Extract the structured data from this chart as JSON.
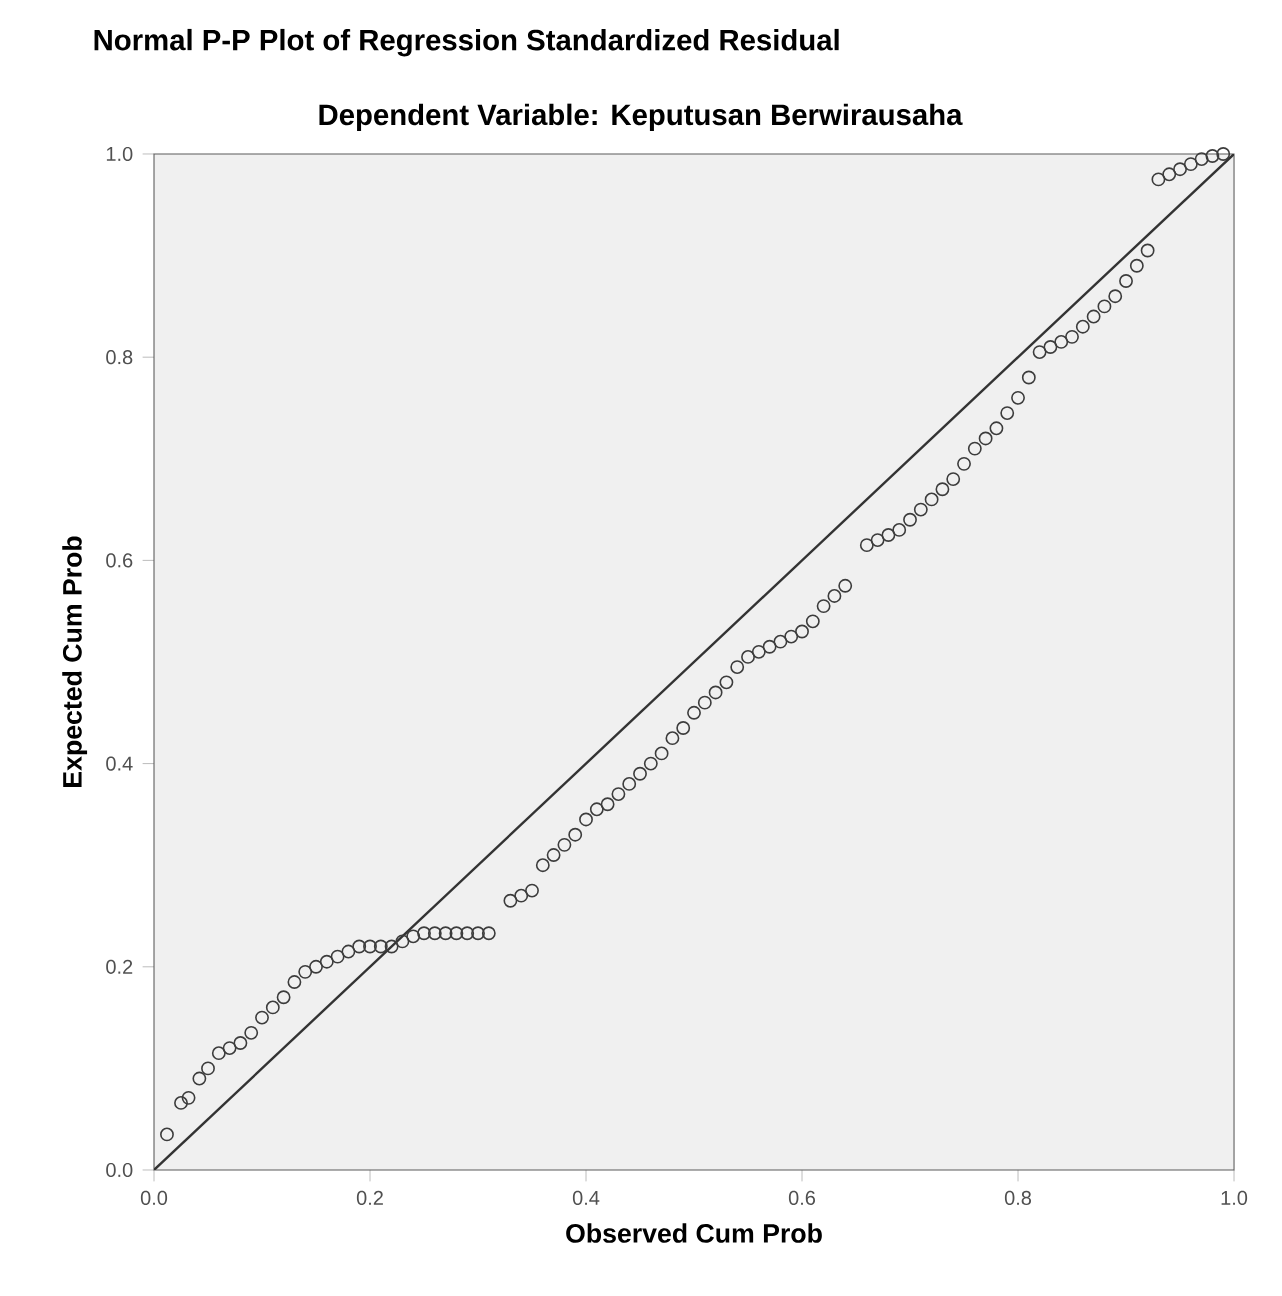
{
  "chart_data": {
    "type": "scatter",
    "title": "Normal P-P Plot of Regression Standardized Residual",
    "subtitle": "Dependent Variable: Keputusan Berwirausaha",
    "xlabel": "Observed Cum Prob",
    "ylabel": "Expected Cum Prob",
    "xlim": [
      0,
      1
    ],
    "ylim": [
      0,
      1
    ],
    "xticks": [
      {
        "value": 0,
        "label": "0.0"
      },
      {
        "value": 0.2,
        "label": "0.2"
      },
      {
        "value": 0.4,
        "label": "0.4"
      },
      {
        "value": 0.6,
        "label": "0.6"
      },
      {
        "value": 0.8,
        "label": "0.8"
      },
      {
        "value": 1,
        "label": "1.0"
      }
    ],
    "yticks": [
      {
        "value": 0,
        "label": "0.0"
      },
      {
        "value": 0.2,
        "label": "0.2"
      },
      {
        "value": 0.4,
        "label": "0.4"
      },
      {
        "value": 0.6,
        "label": "0.6"
      },
      {
        "value": 0.8,
        "label": "0.8"
      },
      {
        "value": 1,
        "label": "1.0"
      }
    ],
    "grid": false,
    "series": [
      {
        "marker": "circle",
        "color": "#3c3c3c",
        "x": [
          0.012,
          0.025,
          0.032,
          0.042,
          0.05,
          0.06,
          0.07,
          0.08,
          0.09,
          0.1,
          0.11,
          0.12,
          0.13,
          0.14,
          0.15,
          0.16,
          0.17,
          0.18,
          0.19,
          0.2,
          0.21,
          0.22,
          0.23,
          0.24,
          0.25,
          0.26,
          0.27,
          0.28,
          0.29,
          0.3,
          0.31,
          0.33,
          0.34,
          0.35,
          0.36,
          0.37,
          0.38,
          0.39,
          0.4,
          0.41,
          0.42,
          0.43,
          0.44,
          0.45,
          0.46,
          0.47,
          0.48,
          0.49,
          0.5,
          0.51,
          0.52,
          0.53,
          0.54,
          0.55,
          0.56,
          0.57,
          0.58,
          0.59,
          0.6,
          0.61,
          0.62,
          0.63,
          0.64,
          0.66,
          0.67,
          0.68,
          0.69,
          0.7,
          0.71,
          0.72,
          0.73,
          0.74,
          0.75,
          0.76,
          0.77,
          0.78,
          0.79,
          0.8,
          0.81,
          0.82,
          0.83,
          0.84,
          0.85,
          0.86,
          0.87,
          0.88,
          0.89,
          0.9,
          0.91,
          0.92,
          0.93,
          0.94,
          0.95,
          0.96,
          0.97,
          0.98,
          0.99
        ],
        "values": [
          0.035,
          0.066,
          0.071,
          0.09,
          0.1,
          0.115,
          0.12,
          0.125,
          0.135,
          0.15,
          0.16,
          0.17,
          0.185,
          0.195,
          0.2,
          0.205,
          0.21,
          0.215,
          0.22,
          0.22,
          0.22,
          0.22,
          0.225,
          0.23,
          0.233,
          0.233,
          0.233,
          0.233,
          0.233,
          0.233,
          0.233,
          0.265,
          0.27,
          0.275,
          0.3,
          0.31,
          0.32,
          0.33,
          0.345,
          0.355,
          0.36,
          0.37,
          0.38,
          0.39,
          0.4,
          0.41,
          0.425,
          0.435,
          0.45,
          0.46,
          0.47,
          0.48,
          0.495,
          0.505,
          0.51,
          0.515,
          0.52,
          0.525,
          0.53,
          0.54,
          0.555,
          0.565,
          0.575,
          0.615,
          0.62,
          0.625,
          0.63,
          0.64,
          0.65,
          0.66,
          0.67,
          0.68,
          0.695,
          0.71,
          0.72,
          0.73,
          0.745,
          0.76,
          0.78,
          0.805,
          0.81,
          0.815,
          0.82,
          0.83,
          0.84,
          0.85,
          0.86,
          0.875,
          0.89,
          0.905,
          0.975,
          0.98,
          0.985,
          0.99,
          0.995,
          0.998,
          1.0
        ]
      },
      {
        "type": "line",
        "marker": "none",
        "color": "#333333",
        "x": [
          0,
          1
        ],
        "values": [
          0,
          1
        ]
      }
    ]
  }
}
